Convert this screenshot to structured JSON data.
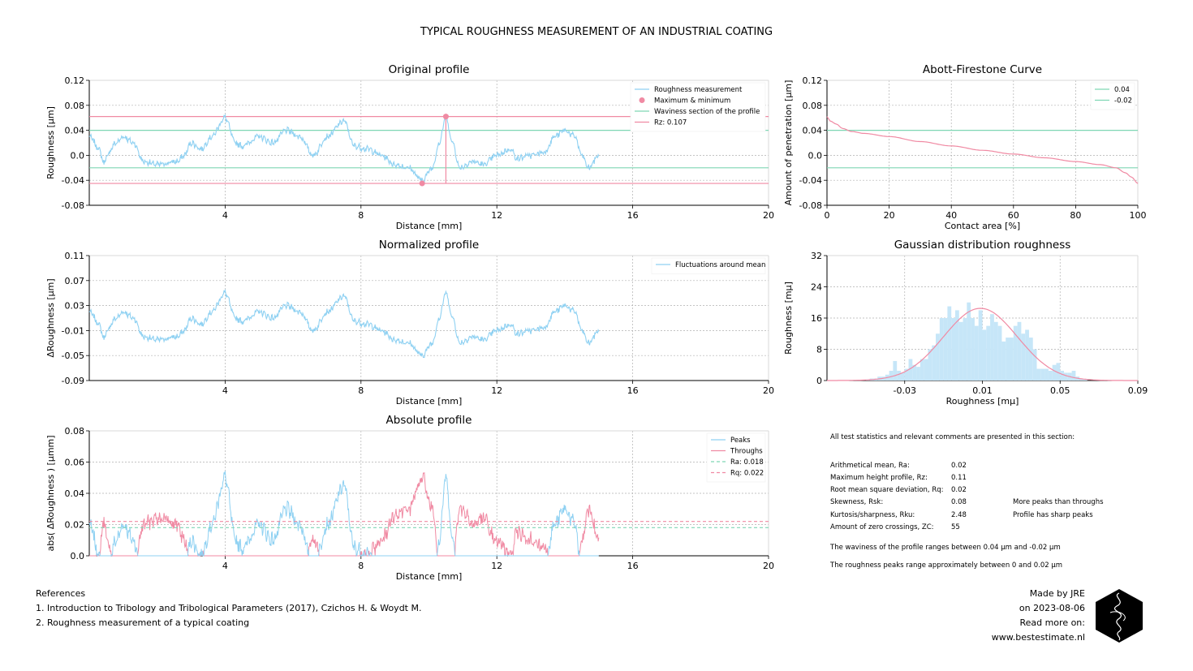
{
  "suptitle": "TYPICAL ROUGHNESS MEASUREMENT OF AN INDUSTRIAL COATING",
  "colors": {
    "blue": "#8fd1f2",
    "pink": "#f08aa3",
    "green": "#7fd6b4",
    "grid": "#b0b0b0"
  },
  "chart_data": [
    {
      "id": "original",
      "type": "line",
      "title": "Original profile",
      "xlabel": "Distance [mm]",
      "ylabel": "Roughness [µm]",
      "xlim": [
        0,
        20
      ],
      "ylim": [
        -0.08,
        0.12
      ],
      "xticks": [
        "4",
        "8",
        "12",
        "16",
        "20"
      ],
      "yticks": [
        "0.12",
        "0.08",
        "0.04",
        "0.0",
        "-0.04",
        "-0.08"
      ],
      "grid": true,
      "legend_position": "top-right",
      "legend": [
        "Roughness measurement",
        "Maximum & minimum",
        "Waviness section of the profile",
        "Rz: 0.107"
      ],
      "series": [
        {
          "name": "Roughness measurement",
          "color": "blue",
          "x_range": [
            0,
            15
          ],
          "keypoints": [
            [
              0,
              0.03
            ],
            [
              0.3,
              0.01
            ],
            [
              0.4,
              -0.01
            ],
            [
              0.8,
              0.02
            ],
            [
              1.0,
              0.03
            ],
            [
              1.3,
              0.02
            ],
            [
              1.6,
              -0.01
            ],
            [
              2.0,
              -0.015
            ],
            [
              2.6,
              -0.01
            ],
            [
              2.8,
              0.0
            ],
            [
              3.0,
              0.02
            ],
            [
              3.3,
              0.01
            ],
            [
              3.6,
              0.03
            ],
            [
              4.0,
              0.06
            ],
            [
              4.3,
              0.02
            ],
            [
              4.5,
              0.015
            ],
            [
              5.0,
              0.03
            ],
            [
              5.4,
              0.02
            ],
            [
              5.8,
              0.04
            ],
            [
              6.2,
              0.03
            ],
            [
              6.6,
              0.0
            ],
            [
              7.0,
              0.03
            ],
            [
              7.5,
              0.055
            ],
            [
              7.8,
              0.015
            ],
            [
              8.2,
              0.01
            ],
            [
              8.6,
              0.0
            ],
            [
              9.0,
              -0.015
            ],
            [
              9.4,
              -0.02
            ],
            [
              9.8,
              -0.04
            ],
            [
              10.1,
              -0.02
            ],
            [
              10.3,
              0.02
            ],
            [
              10.5,
              0.06
            ],
            [
              10.7,
              0.02
            ],
            [
              10.9,
              -0.02
            ],
            [
              11.3,
              -0.01
            ],
            [
              11.6,
              -0.015
            ],
            [
              12.0,
              0.0
            ],
            [
              12.4,
              0.01
            ],
            [
              12.6,
              -0.005
            ],
            [
              13.0,
              0.0
            ],
            [
              13.4,
              0.005
            ],
            [
              13.7,
              0.03
            ],
            [
              14.0,
              0.04
            ],
            [
              14.3,
              0.03
            ],
            [
              14.5,
              0.0
            ],
            [
              14.7,
              -0.02
            ],
            [
              15.0,
              0.0
            ]
          ]
        },
        {
          "name": "Maximum & minimum",
          "color": "pink",
          "points": [
            [
              10.5,
              0.062
            ],
            [
              9.8,
              -0.045
            ]
          ]
        },
        {
          "name": "Waviness section of the profile",
          "color": "green",
          "hlines": [
            0.04,
            -0.02
          ]
        },
        {
          "name": "Rz: 0.107",
          "color": "pink",
          "hlines": [
            0.062,
            -0.045
          ],
          "vline": [
            10.5,
            -0.045,
            0.062
          ]
        }
      ]
    },
    {
      "id": "abbott",
      "type": "line",
      "title": "Abott-Firestone Curve",
      "xlabel": "Contact area [%]",
      "ylabel": "Amount of penetration [µm]",
      "xlim": [
        0,
        100
      ],
      "ylim": [
        -0.08,
        0.12
      ],
      "xticks": [
        "0",
        "20",
        "40",
        "60",
        "80",
        "100"
      ],
      "yticks": [
        "0.12",
        "0.08",
        "0.04",
        "0.0",
        "-0.04",
        "-0.08"
      ],
      "grid": true,
      "legend_position": "top-right",
      "legend": [
        "0.04",
        "-0.02"
      ],
      "series": [
        {
          "name": "curve",
          "color": "pink",
          "keypoints": [
            [
              0,
              0.062
            ],
            [
              1,
              0.055
            ],
            [
              3,
              0.05
            ],
            [
              5,
              0.043
            ],
            [
              8,
              0.038
            ],
            [
              12,
              0.035
            ],
            [
              20,
              0.03
            ],
            [
              30,
              0.022
            ],
            [
              40,
              0.015
            ],
            [
              50,
              0.008
            ],
            [
              60,
              0.002
            ],
            [
              70,
              -0.004
            ],
            [
              80,
              -0.01
            ],
            [
              88,
              -0.015
            ],
            [
              93,
              -0.02
            ],
            [
              96,
              -0.028
            ],
            [
              98,
              -0.035
            ],
            [
              100,
              -0.045
            ]
          ]
        },
        {
          "name": "0.04",
          "color": "green",
          "hline": 0.04
        },
        {
          "name": "-0.02",
          "color": "green",
          "hline": -0.02
        }
      ]
    },
    {
      "id": "normalized",
      "type": "line",
      "title": "Normalized profile",
      "xlabel": "Distance [mm]",
      "ylabel": "ΔRoughness [µm]",
      "xlim": [
        0,
        20
      ],
      "ylim": [
        -0.09,
        0.11
      ],
      "xticks": [
        "4",
        "8",
        "12",
        "16",
        "20"
      ],
      "yticks": [
        "0.11",
        "0.07",
        "0.03",
        "-0.01",
        "-0.05",
        "-0.09"
      ],
      "grid": true,
      "legend_position": "top-right",
      "legend": [
        "Fluctuations around mean"
      ],
      "series": [
        {
          "name": "Fluctuations around mean",
          "color": "blue",
          "offset": -0.01
        }
      ]
    },
    {
      "id": "gaussian",
      "type": "bar",
      "title": "Gaussian distribution roughness",
      "xlabel": "Roughness [mµ]",
      "ylabel": "Roughness [mµ]",
      "xlim": [
        -0.07,
        0.09
      ],
      "ylim": [
        0,
        32
      ],
      "xticks": [
        "-0.03",
        "0.01",
        "0.05",
        "0.09"
      ],
      "yticks": [
        "32",
        "24",
        "16",
        "8",
        "0"
      ],
      "grid": true,
      "bin_start": -0.05,
      "bin_width": 0.002,
      "values": [
        0.3,
        0.5,
        0.5,
        1,
        1,
        1.5,
        2.5,
        5,
        2.5,
        2,
        3,
        5.5,
        4,
        3.5,
        5.5,
        5.5,
        8,
        9,
        12,
        16,
        16,
        19,
        16,
        18,
        15,
        16,
        20,
        16,
        14,
        18,
        13,
        14,
        17,
        15,
        14,
        10,
        11,
        11,
        14,
        15,
        12,
        13,
        11,
        8,
        3,
        3,
        3,
        2.5,
        4,
        4.5,
        2.5,
        2,
        2,
        2.5,
        1,
        0.5,
        0.3
      ],
      "curve": {
        "mean": 0.009,
        "sd": 0.019,
        "peak": 18.5
      }
    },
    {
      "id": "absolute",
      "type": "line",
      "title": "Absolute profile",
      "xlabel": "Distance [mm]",
      "ylabel": "abs( ΔRoughness ) [µmm]",
      "xlim": [
        0,
        20
      ],
      "ylim": [
        0,
        0.08
      ],
      "xticks": [
        "4",
        "8",
        "12",
        "16",
        "20"
      ],
      "yticks": [
        "0.08",
        "0.06",
        "0.04",
        "0.02",
        "0.0"
      ],
      "grid": true,
      "legend_position": "top-right",
      "legend": [
        "Peaks",
        "Throughs",
        "Ra: 0.018",
        "Rq: 0.022"
      ],
      "series": [
        {
          "name": "Peaks",
          "color": "blue"
        },
        {
          "name": "Throughs",
          "color": "pink"
        },
        {
          "name": "Ra: 0.018",
          "color": "green",
          "hline": 0.018,
          "dashed": true
        },
        {
          "name": "Rq: 0.022",
          "color": "pink",
          "hline": 0.022,
          "dashed": true
        }
      ]
    }
  ],
  "stats": {
    "intro": "All test statistics and relevant comments are presented in this section:",
    "rows": [
      {
        "label": "Arithmetical mean, Ra:",
        "value": "0.02",
        "comment": ""
      },
      {
        "label": "Maximum height profile, Rz:",
        "value": "0.11",
        "comment": ""
      },
      {
        "label": "Root mean square deviation, Rq:",
        "value": "0.02",
        "comment": ""
      },
      {
        "label": "Skewness, Rsk:",
        "value": "0.08",
        "comment": "More peaks than throughs"
      },
      {
        "label": "Kurtosis/sharpness, Rku:",
        "value": "2.48",
        "comment": "Profile has sharp peaks"
      },
      {
        "label": "Amount of zero crossings, ZC:",
        "value": "55",
        "comment": ""
      }
    ],
    "note1": "The waviness of the profile ranges between 0.04 µm and -0.02 µm",
    "note2": "The roughness peaks range approximately between 0 and 0.02 µm"
  },
  "references": {
    "heading": "References",
    "items": [
      "1. Introduction to Tribology and Tribological Parameters (2017), Czichos H. & Woydt M.",
      "2. Roughness measurement of a typical coating"
    ]
  },
  "credits": {
    "made_by": "Made by JRE",
    "date": "on 2023-08-06",
    "read_more": "Read more on:",
    "url": "www.bestestimate.nl"
  },
  "logo": "hexagon-logo"
}
